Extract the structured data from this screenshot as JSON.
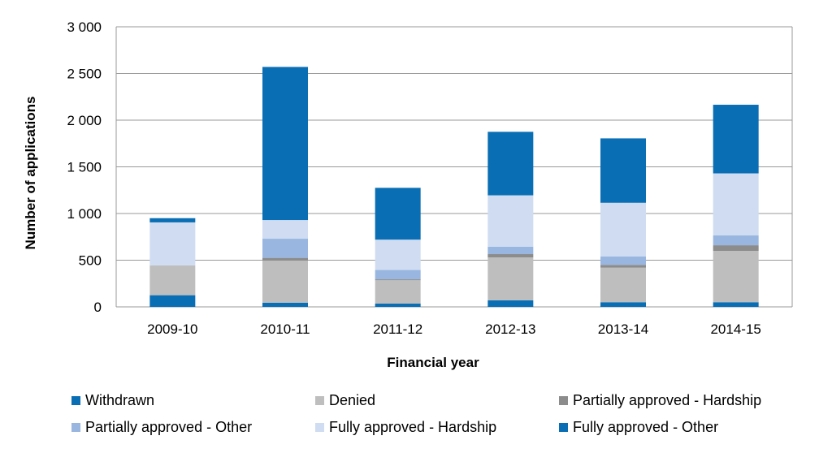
{
  "chart_data": {
    "type": "bar",
    "stacked": true,
    "title": "",
    "xlabel": "Financial year",
    "ylabel": "Number of applications",
    "ylim": [
      0,
      3000
    ],
    "yticks": [
      0,
      500,
      1000,
      1500,
      2000,
      2500,
      3000
    ],
    "ytick_labels": [
      "0",
      "500",
      "1 000",
      "1 500",
      "2 000",
      "2 500",
      "3 000"
    ],
    "grid": true,
    "legend_position": "bottom",
    "categories": [
      "2009-10",
      "2010-11",
      "2011-12",
      "2012-13",
      "2013-14",
      "2014-15"
    ],
    "series": [
      {
        "name": "Withdrawn",
        "color": "#0a6eb4",
        "values": [
          125,
          45,
          35,
          70,
          50,
          50
        ]
      },
      {
        "name": "Denied",
        "color": "#bebebe",
        "values": [
          320,
          450,
          250,
          460,
          370,
          550
        ]
      },
      {
        "name": "Partially approved - Hardship",
        "color": "#8c8c8c",
        "values": [
          0,
          30,
          10,
          35,
          30,
          60
        ]
      },
      {
        "name": "Partially approved - Other",
        "color": "#98b6df",
        "values": [
          0,
          205,
          100,
          80,
          90,
          105
        ]
      },
      {
        "name": "Fully approved - Hardship",
        "color": "#cfdcf1",
        "values": [
          460,
          200,
          325,
          550,
          575,
          665
        ]
      },
      {
        "name": "Fully approved - Other",
        "color": "#0a6eb4",
        "values": [
          45,
          1640,
          555,
          680,
          690,
          735
        ]
      }
    ]
  },
  "legend_rows": [
    [
      0,
      1,
      2
    ],
    [
      3,
      4,
      5
    ]
  ]
}
